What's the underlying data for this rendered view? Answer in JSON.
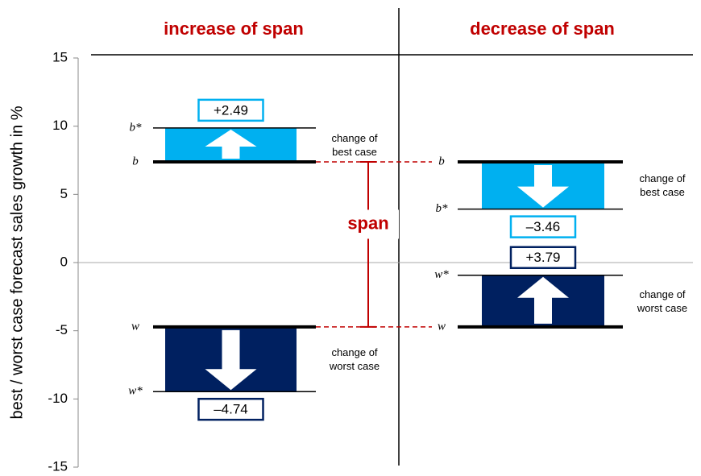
{
  "chart_data": {
    "type": "span",
    "y_label": "best / worst case forecast sales growth in %",
    "ylim": [
      -15,
      15
    ],
    "yticks": [
      15,
      10,
      5,
      0,
      -5,
      -10,
      -15
    ],
    "best": 7.38,
    "worst": -4.72,
    "best_label": "b",
    "best_new_label": "b*",
    "worst_label": "w",
    "worst_new_label": "w*",
    "span_label": "span",
    "title_color": "#c00000",
    "panels": [
      {
        "title": "increase of span",
        "series": [
          {
            "name": "change of best case",
            "color": "#00b0f0",
            "values": [
              2.49
            ],
            "value_labels": [
              "+2.49"
            ]
          },
          {
            "name": "change of worst case",
            "color": "#002060",
            "values": [
              -4.74
            ],
            "value_labels": [
              "–4.74"
            ]
          }
        ]
      },
      {
        "title": "decrease of span",
        "series": [
          {
            "name": "change of best case",
            "color": "#00b0f0",
            "values": [
              -3.46
            ],
            "value_labels": [
              "–3.46"
            ]
          },
          {
            "name": "change of worst case",
            "color": "#002060",
            "values": [
              3.79
            ],
            "value_labels": [
              "+3.79"
            ]
          }
        ]
      }
    ]
  }
}
